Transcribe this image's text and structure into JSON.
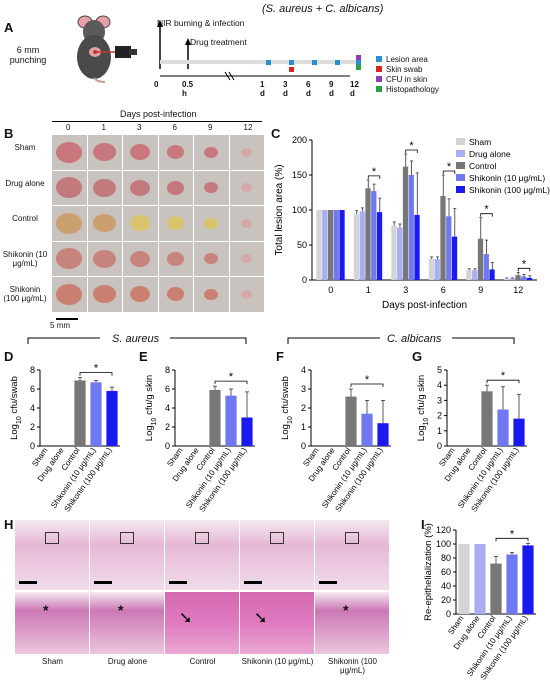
{
  "panelA": {
    "label": "A",
    "title": "(S. aureus + C. albicans)",
    "punch_text": [
      "6 mm",
      "punching"
    ],
    "nir_text": "NIR burning & infection",
    "drug_text": "Drug treatment",
    "timepoints": [
      "0",
      "0.5 h",
      "1 d",
      "3 d",
      "6 d",
      "9 d",
      "12 d"
    ],
    "legend": [
      {
        "label": "Lesion area",
        "color": "#2a8fd0"
      },
      {
        "label": "Skin swab",
        "color": "#e02020"
      },
      {
        "label": "CFU in skin",
        "color": "#8b3fb0"
      },
      {
        "label": "Histopathology",
        "color": "#2ea043"
      }
    ]
  },
  "panelB": {
    "label": "B",
    "header": "Days post-infection",
    "days": [
      "0",
      "1",
      "3",
      "6",
      "9",
      "12"
    ],
    "rows": [
      {
        "label": "Sham",
        "tone": "#c8787c"
      },
      {
        "label": "Drug alone",
        "tone": "#c27a7c"
      },
      {
        "label": "Control",
        "tone": "#caa070"
      },
      {
        "label": "Shikonin (10 μg/mL)",
        "tone": "#c6847c"
      },
      {
        "label": "Shikonin (100 μg/mL)",
        "tone": "#c98070"
      }
    ],
    "scalebar": "5 mm"
  },
  "colors": {
    "sham": "#d4d4d8",
    "drug": "#a9aef2",
    "control": "#777777",
    "shik10": "#6f78ee",
    "shik100": "#1a1af0"
  },
  "chart_data": [
    {
      "panel": "C",
      "type": "bar",
      "xlabel": "Days post-infection",
      "ylabel": "Total lesion area (%)",
      "ylim": [
        0,
        200
      ],
      "yticks": [
        0,
        50,
        100,
        150,
        200
      ],
      "categories": [
        "0",
        "1",
        "3",
        "6",
        "9",
        "12"
      ],
      "series": [
        {
          "name": "Sham",
          "values": [
            100,
            94,
            78,
            30,
            14,
            2
          ],
          "errors": [
            0,
            5,
            5,
            3,
            2,
            1
          ]
        },
        {
          "name": "Drug alone",
          "values": [
            100,
            98,
            75,
            30,
            14,
            2
          ],
          "errors": [
            0,
            5,
            5,
            3,
            2,
            1
          ]
        },
        {
          "name": "Control",
          "values": [
            100,
            131,
            162,
            120,
            59,
            7
          ],
          "errors": [
            0,
            12,
            18,
            30,
            30,
            4
          ]
        },
        {
          "name": "Shikonin (10 μg/mL)",
          "values": [
            100,
            127,
            150,
            91,
            37,
            5
          ],
          "errors": [
            0,
            10,
            20,
            25,
            20,
            3
          ]
        },
        {
          "name": "Shikonin (100 μg/mL)",
          "values": [
            100,
            97,
            93,
            62,
            15,
            3
          ],
          "errors": [
            0,
            20,
            60,
            40,
            10,
            3
          ]
        }
      ],
      "significance": [
        "*",
        "*",
        "*",
        "*",
        "*"
      ],
      "legend_position": "top-right"
    },
    {
      "panel": "D",
      "type": "bar",
      "group_title": "S. aureus",
      "ylabel": "Log10 cfu/swab",
      "ylim": [
        0,
        8
      ],
      "yticks": [
        0,
        2,
        4,
        6,
        8
      ],
      "categories": [
        "Sham",
        "Drug alone",
        "Control",
        "Shikonin (10 μg/mL)",
        "Shikonin (100 μg/mL)"
      ],
      "values": [
        0,
        0,
        6.9,
        6.7,
        5.8
      ],
      "errors": [
        0,
        0,
        0.3,
        0.2,
        0.4
      ],
      "significance": "*"
    },
    {
      "panel": "E",
      "type": "bar",
      "ylabel": "Log10 cfu/g skin",
      "ylim": [
        0,
        8
      ],
      "yticks": [
        0,
        2,
        4,
        6,
        8
      ],
      "categories": [
        "Sham",
        "Drug alone",
        "Control",
        "Shikonin (10 μg/mL)",
        "Shikonin (100 μg/mL)"
      ],
      "values": [
        0,
        0,
        5.9,
        5.3,
        3.0
      ],
      "errors": [
        0,
        0,
        0.4,
        0.7,
        2.7
      ],
      "significance": "*"
    },
    {
      "panel": "F",
      "type": "bar",
      "group_title": "C. albicans",
      "ylabel": "Log10 cfu/swab",
      "ylim": [
        0,
        4
      ],
      "yticks": [
        0,
        1,
        2,
        3,
        4
      ],
      "categories": [
        "Sham",
        "Drug alone",
        "Control",
        "Shikonin (10 μg/mL)",
        "Shikonin (100 μg/mL)"
      ],
      "values": [
        0,
        0,
        2.6,
        1.7,
        1.2
      ],
      "errors": [
        0,
        0,
        0.4,
        0.7,
        1.2
      ],
      "significance": "*"
    },
    {
      "panel": "G",
      "type": "bar",
      "ylabel": "Log10 cfu/g skin",
      "ylim": [
        0,
        5
      ],
      "yticks": [
        0,
        1,
        2,
        3,
        4,
        5
      ],
      "categories": [
        "Sham",
        "Drug alone",
        "Control",
        "Shikonin (10 μg/mL)",
        "Shikonin (100 μg/mL)"
      ],
      "values": [
        0,
        0,
        3.6,
        2.4,
        1.8
      ],
      "errors": [
        0,
        0,
        0.4,
        1.5,
        1.6
      ],
      "significance": "*"
    },
    {
      "panel": "I",
      "type": "bar",
      "ylabel": "Re-epithelialization (%)",
      "ylim": [
        0,
        120
      ],
      "yticks": [
        0,
        20,
        40,
        60,
        80,
        100,
        120
      ],
      "categories": [
        "Sham",
        "Drug alone",
        "Control",
        "Shikonin (10 μg/mL)",
        "Shikonin (100 μg/mL)"
      ],
      "values": [
        100,
        100,
        72,
        85,
        98
      ],
      "errors": [
        0,
        0,
        10,
        3,
        3
      ],
      "significance": "*"
    }
  ],
  "panelH": {
    "label": "H",
    "groups": [
      "Sham",
      "Drug alone",
      "Control",
      "Shikonin (10 μg/mL)",
      "Shikonin (100 μg/mL)"
    ]
  }
}
